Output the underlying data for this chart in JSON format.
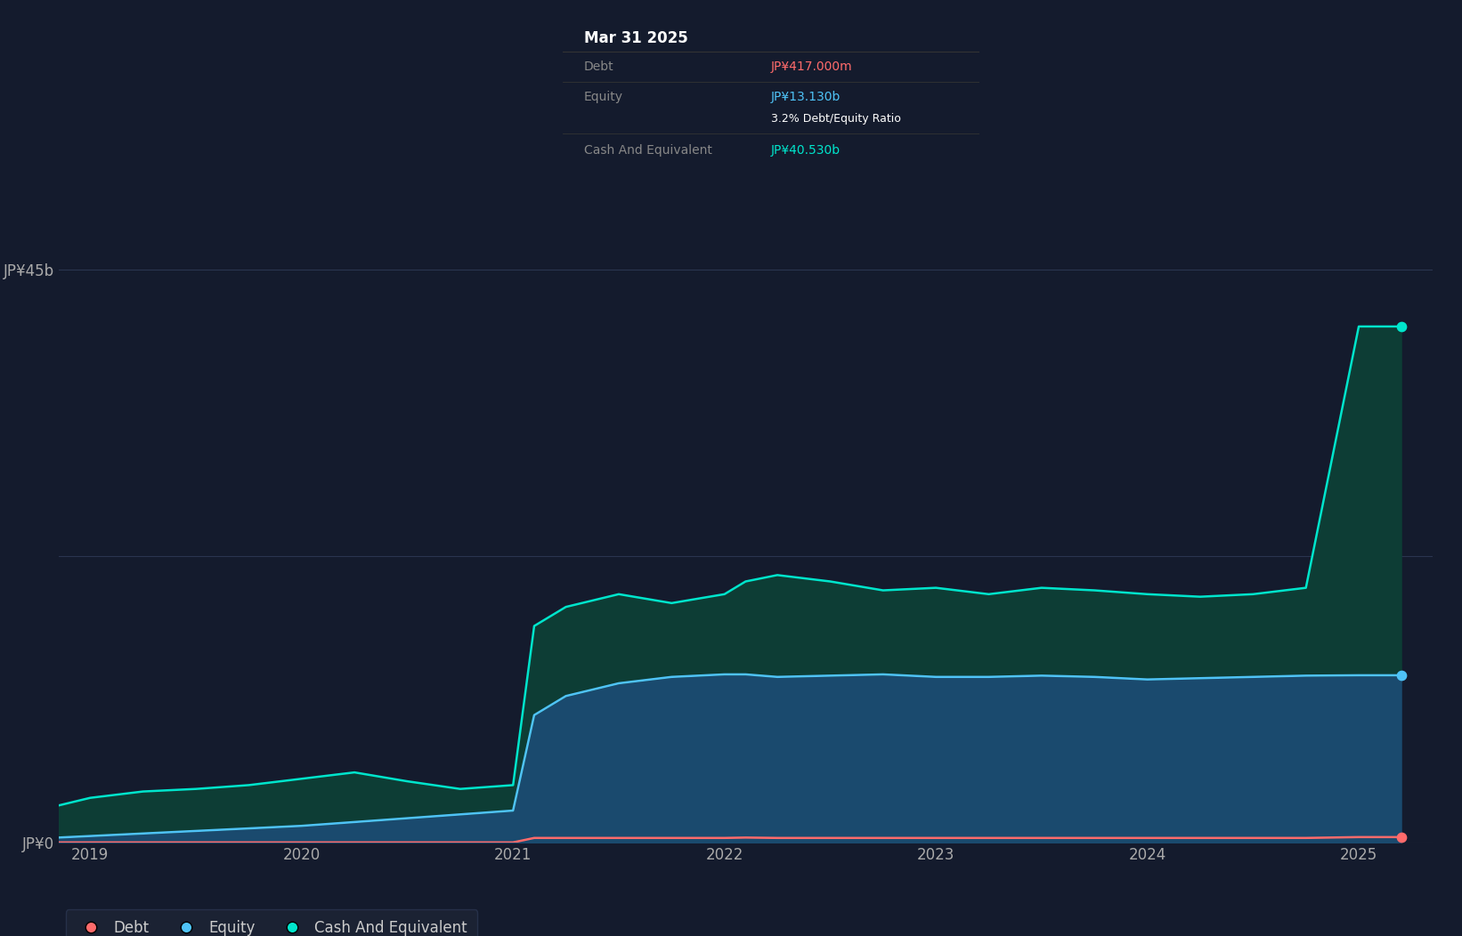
{
  "background_color": "#141b2d",
  "plot_bg_color": "#141b2d",
  "ylabel_top": "JP¥45b",
  "ylabel_zero": "JP¥0",
  "x_ticks": [
    "2019",
    "2020",
    "2021",
    "2022",
    "2023",
    "2024",
    "2025"
  ],
  "ylim": [
    0,
    50
  ],
  "grid_color": "#2a3550",
  "tooltip": {
    "date": "Mar 31 2025",
    "debt_label": "Debt",
    "debt_value": "JP¥417.000m",
    "debt_color": "#ff6b6b",
    "equity_label": "Equity",
    "equity_value": "JP¥13.130b",
    "equity_color": "#4fc3f7",
    "ratio_text": "3.2% Debt/Equity Ratio",
    "ratio_bold": "3.2%",
    "ratio_color": "#ffffff",
    "cash_label": "Cash And Equivalent",
    "cash_value": "JP¥40.530b",
    "cash_color": "#00e5cc",
    "bg_color": "#000000",
    "header_text_color": "#ffffff",
    "label_color": "#888888",
    "divider_color": "#333333"
  },
  "legend": {
    "debt_label": "Debt",
    "debt_color": "#ff6b6b",
    "equity_label": "Equity",
    "equity_color": "#4fc3f7",
    "cash_label": "Cash And Equivalent",
    "cash_color": "#00e5cc",
    "bg_color": "#1e2535",
    "text_color": "#cccccc"
  },
  "line_debt_color": "#ff6b6b",
  "line_equity_color": "#4fc3f7",
  "line_cash_color": "#00e5cc",
  "fill_equity_color": "#1a4a6e",
  "fill_cash_color": "#0d3d35",
  "line_width": 1.8,
  "dot_size": 55,
  "time_values": [
    2018.75,
    2019.0,
    2019.25,
    2019.5,
    2019.75,
    2020.0,
    2020.25,
    2020.5,
    2020.75,
    2021.0,
    2021.1,
    2021.25,
    2021.5,
    2021.75,
    2022.0,
    2022.1,
    2022.25,
    2022.5,
    2022.75,
    2023.0,
    2023.25,
    2023.5,
    2023.75,
    2024.0,
    2024.25,
    2024.5,
    2024.75,
    2025.0,
    2025.2
  ],
  "debt_values": [
    0.0,
    0.0,
    0.0,
    0.0,
    0.0,
    0.0,
    0.0,
    0.0,
    0.0,
    0.0,
    0.35,
    0.35,
    0.35,
    0.35,
    0.35,
    0.38,
    0.35,
    0.35,
    0.35,
    0.35,
    0.35,
    0.35,
    0.35,
    0.35,
    0.35,
    0.35,
    0.35,
    0.417,
    0.417
  ],
  "equity_values": [
    0.3,
    0.5,
    0.7,
    0.9,
    1.1,
    1.3,
    1.6,
    1.9,
    2.2,
    2.5,
    10.0,
    11.5,
    12.5,
    13.0,
    13.2,
    13.2,
    13.0,
    13.1,
    13.2,
    13.0,
    13.0,
    13.1,
    13.0,
    12.8,
    12.9,
    13.0,
    13.1,
    13.13,
    13.13
  ],
  "cash_values": [
    2.5,
    3.5,
    4.0,
    4.2,
    4.5,
    5.0,
    5.5,
    4.8,
    4.2,
    4.5,
    17.0,
    18.5,
    19.5,
    18.8,
    19.5,
    20.5,
    21.0,
    20.5,
    19.8,
    20.0,
    19.5,
    20.0,
    19.8,
    19.5,
    19.3,
    19.5,
    20.0,
    40.53,
    40.53
  ]
}
